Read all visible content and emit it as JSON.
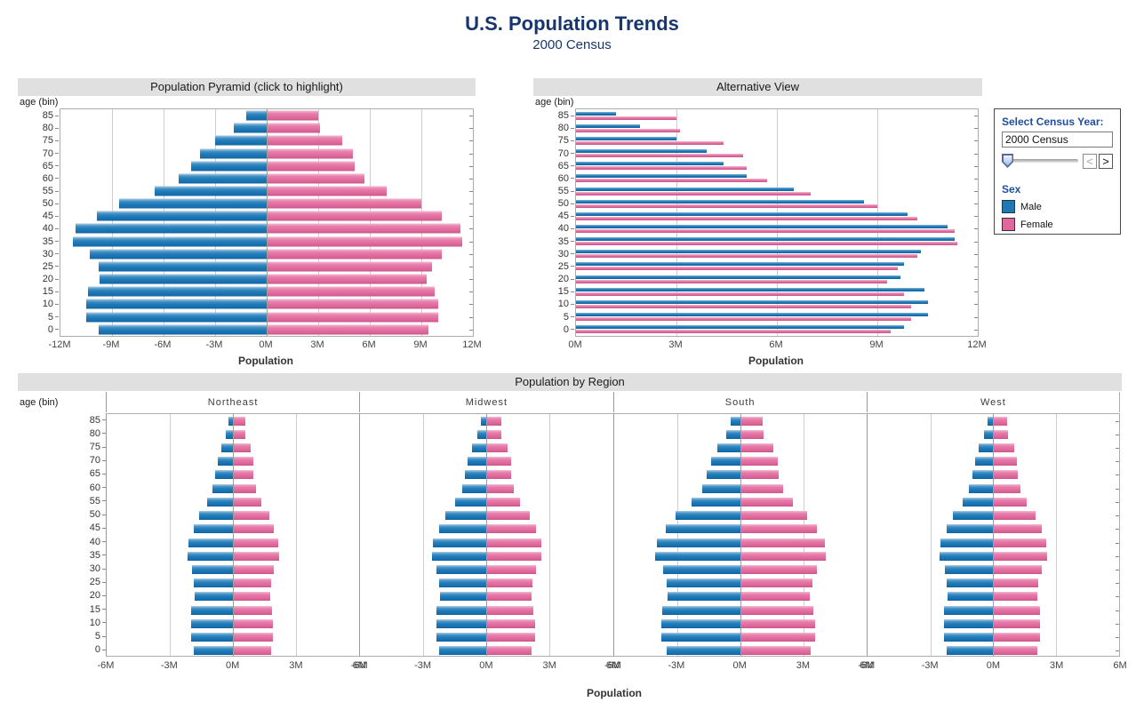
{
  "title": "U.S. Population Trends",
  "subtitle": "2000 Census",
  "axis": {
    "ylabel": "age (bin)",
    "xlabel": "Population"
  },
  "controls": {
    "box_title": "Select Census Year:",
    "year_input_value": "2000 Census",
    "prev_button": "<",
    "next_button": ">",
    "legend_title": "Sex",
    "legend": [
      {
        "label": "Male",
        "color": "#1f78b4"
      },
      {
        "label": "Female",
        "color": "#e0679c"
      }
    ]
  },
  "chart_data": [
    {
      "type": "bar",
      "subtype": "population-pyramid",
      "title": "Population Pyramid (click to highlight)",
      "xlabel": "Population",
      "ylabel": "age (bin)",
      "units": "millions",
      "xlim": [
        -12,
        12
      ],
      "xticks": [
        "-12M",
        "-9M",
        "-6M",
        "-3M",
        "0M",
        "3M",
        "6M",
        "9M",
        "12M"
      ],
      "categories": [
        "0",
        "5",
        "10",
        "15",
        "20",
        "25",
        "30",
        "35",
        "40",
        "45",
        "50",
        "55",
        "60",
        "65",
        "70",
        "75",
        "80",
        "85"
      ],
      "series": [
        {
          "name": "Male",
          "values": [
            9.8,
            10.5,
            10.5,
            10.4,
            9.7,
            9.8,
            10.3,
            11.3,
            11.1,
            9.9,
            8.6,
            6.5,
            5.1,
            4.4,
            3.9,
            3.0,
            1.9,
            1.2
          ]
        },
        {
          "name": "Female",
          "values": [
            9.4,
            10.0,
            10.0,
            9.8,
            9.3,
            9.6,
            10.2,
            11.4,
            11.3,
            10.2,
            9.0,
            7.0,
            5.7,
            5.1,
            5.0,
            4.4,
            3.1,
            3.0
          ]
        }
      ]
    },
    {
      "type": "bar",
      "subtype": "grouped-horizontal",
      "title": "Alternative View",
      "xlabel": "Population",
      "ylabel": "age (bin)",
      "units": "millions",
      "xlim": [
        0,
        12
      ],
      "xticks": [
        "0M",
        "3M",
        "6M",
        "9M",
        "12M"
      ],
      "categories": [
        "0",
        "5",
        "10",
        "15",
        "20",
        "25",
        "30",
        "35",
        "40",
        "45",
        "50",
        "55",
        "60",
        "65",
        "70",
        "75",
        "80",
        "85"
      ],
      "series": [
        {
          "name": "Male",
          "values": [
            9.8,
            10.5,
            10.5,
            10.4,
            9.7,
            9.8,
            10.3,
            11.3,
            11.1,
            9.9,
            8.6,
            6.5,
            5.1,
            4.4,
            3.9,
            3.0,
            1.9,
            1.2
          ]
        },
        {
          "name": "Female",
          "values": [
            9.4,
            10.0,
            10.0,
            9.8,
            9.3,
            9.6,
            10.2,
            11.4,
            11.3,
            10.2,
            9.0,
            7.0,
            5.7,
            5.1,
            5.0,
            4.4,
            3.1,
            3.0
          ]
        }
      ]
    },
    {
      "type": "bar",
      "subtype": "small-multiple-pyramids",
      "title": "Population by Region",
      "xlabel": "Population",
      "ylabel": "age (bin)",
      "units": "millions",
      "xlim": [
        -6,
        6
      ],
      "xticks": [
        "-6M",
        "-3M",
        "0M",
        "3M",
        "6M"
      ],
      "categories": [
        "0",
        "5",
        "10",
        "15",
        "20",
        "25",
        "30",
        "35",
        "40",
        "45",
        "50",
        "55",
        "60",
        "65",
        "70",
        "75",
        "80",
        "85"
      ],
      "regions": [
        {
          "name": "Northeast",
          "male": [
            1.86,
            2.0,
            2.0,
            1.98,
            1.84,
            1.86,
            1.96,
            2.15,
            2.11,
            1.88,
            1.63,
            1.24,
            0.97,
            0.84,
            0.74,
            0.57,
            0.36,
            0.23
          ],
          "female": [
            1.79,
            1.9,
            1.9,
            1.86,
            1.77,
            1.82,
            1.94,
            2.17,
            2.15,
            1.94,
            1.71,
            1.33,
            1.08,
            0.97,
            0.95,
            0.84,
            0.59,
            0.57
          ]
        },
        {
          "name": "Midwest",
          "male": [
            2.24,
            2.4,
            2.4,
            2.38,
            2.22,
            2.24,
            2.36,
            2.59,
            2.54,
            2.27,
            1.97,
            1.49,
            1.17,
            1.01,
            0.89,
            0.69,
            0.44,
            0.27
          ],
          "female": [
            2.15,
            2.29,
            2.29,
            2.24,
            2.13,
            2.2,
            2.34,
            2.61,
            2.59,
            2.34,
            2.06,
            1.6,
            1.31,
            1.17,
            1.15,
            1.01,
            0.71,
            0.69
          ]
        },
        {
          "name": "South",
          "male": [
            3.49,
            3.74,
            3.74,
            3.7,
            3.45,
            3.49,
            3.67,
            4.02,
            3.95,
            3.52,
            3.06,
            2.31,
            1.82,
            1.57,
            1.39,
            1.07,
            0.68,
            0.43
          ],
          "female": [
            3.35,
            3.56,
            3.56,
            3.49,
            3.31,
            3.42,
            3.63,
            4.06,
            4.02,
            3.63,
            3.2,
            2.49,
            2.03,
            1.82,
            1.78,
            1.57,
            1.1,
            1.07
          ]
        },
        {
          "name": "West",
          "male": [
            2.21,
            2.36,
            2.36,
            2.34,
            2.18,
            2.21,
            2.32,
            2.54,
            2.5,
            2.23,
            1.94,
            1.46,
            1.15,
            0.99,
            0.88,
            0.68,
            0.43,
            0.27
          ],
          "female": [
            2.12,
            2.25,
            2.25,
            2.21,
            2.09,
            2.16,
            2.3,
            2.57,
            2.54,
            2.3,
            2.03,
            1.58,
            1.28,
            1.15,
            1.13,
            0.99,
            0.7,
            0.68
          ]
        }
      ]
    }
  ]
}
